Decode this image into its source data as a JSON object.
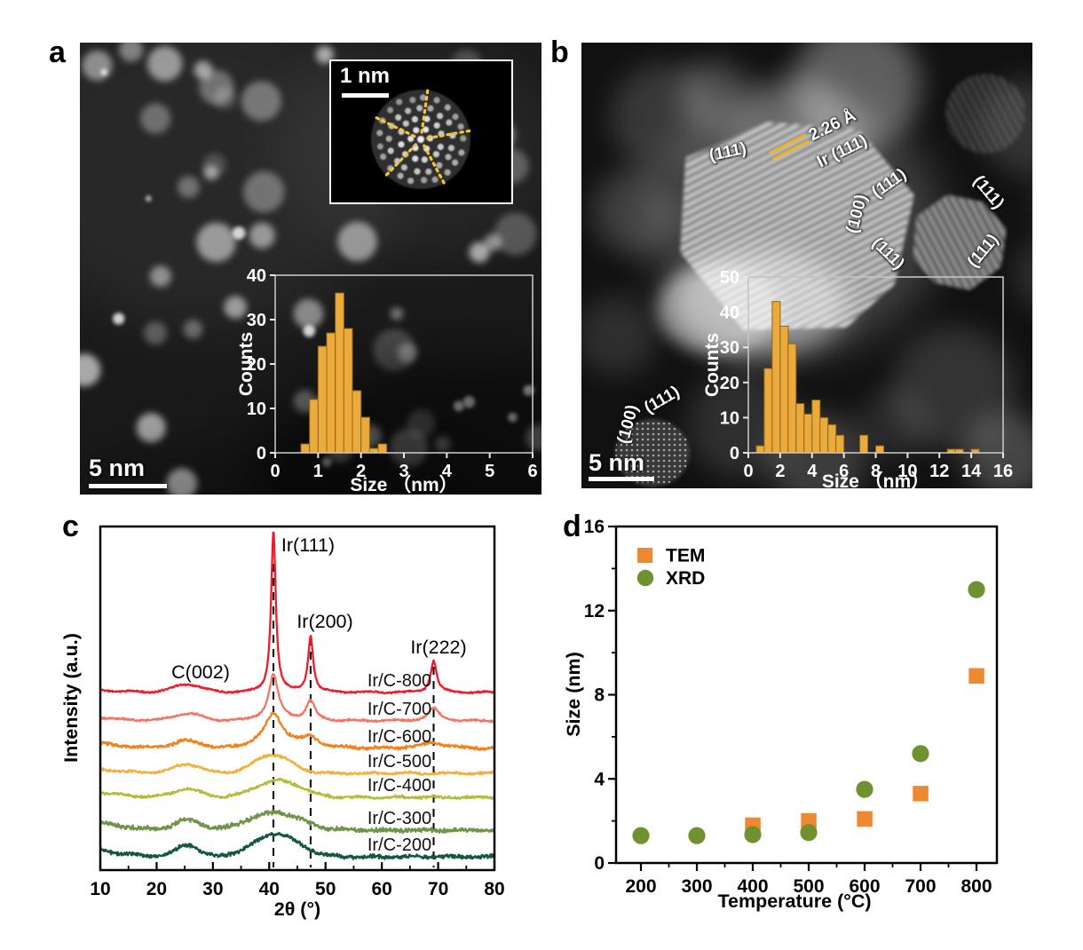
{
  "panels": {
    "a": {
      "label": "a",
      "scale_bar": "5 nm",
      "inset": {
        "scale_bar": "1 nm"
      }
    },
    "b": {
      "label": "b",
      "scale_bar": "5 nm",
      "annotations": {
        "big_111": "(111)",
        "d_spacing": "2.26 Å",
        "ir_111": "Ir (111)",
        "small_100": "(100)",
        "small_111_top": "(111)",
        "small_111_topright": "(111)",
        "small_111_bottomleft": "(111)",
        "small_111_bottomright": "(111)",
        "left_100": "(100)",
        "left_111": "(111)"
      }
    },
    "c": {
      "label": "c"
    },
    "d": {
      "label": "d"
    }
  },
  "colors": {
    "histogram_bar": "#edaa3c",
    "tem_marker": "#ef8833",
    "xrd_marker": "#6e9230",
    "annotation_line": "#f2b422"
  },
  "chart_data": [
    {
      "id": "hist_a",
      "type": "bar",
      "title": "",
      "xlabel": "Size （nm）",
      "ylabel": "Counts",
      "xlim": [
        0,
        6
      ],
      "ylim": [
        0,
        40
      ],
      "xticks": [
        0,
        1,
        2,
        3,
        4,
        5,
        6
      ],
      "yticks": [
        0,
        10,
        20,
        30,
        40
      ],
      "bin_width": 0.2,
      "bar_color": "#edaa3c",
      "bins": [
        [
          0.6,
          2
        ],
        [
          0.8,
          12
        ],
        [
          1.0,
          24
        ],
        [
          1.2,
          27
        ],
        [
          1.4,
          36
        ],
        [
          1.6,
          28
        ],
        [
          1.8,
          14
        ],
        [
          2.0,
          8
        ],
        [
          2.2,
          1
        ],
        [
          2.4,
          2
        ]
      ]
    },
    {
      "id": "hist_b",
      "type": "bar",
      "title": "",
      "xlabel": "Size （nm）",
      "ylabel": "Counts",
      "xlim": [
        0,
        16
      ],
      "ylim": [
        0,
        50
      ],
      "xticks": [
        0,
        2,
        4,
        6,
        8,
        10,
        12,
        14,
        16
      ],
      "yticks": [
        0,
        10,
        20,
        30,
        40,
        50
      ],
      "bin_width": 0.5,
      "bar_color": "#edaa3c",
      "bins": [
        [
          0.5,
          2
        ],
        [
          1.0,
          24
        ],
        [
          1.5,
          43
        ],
        [
          2.0,
          36
        ],
        [
          2.5,
          31
        ],
        [
          3.0,
          14
        ],
        [
          3.5,
          11
        ],
        [
          4.0,
          15
        ],
        [
          4.5,
          10
        ],
        [
          5.0,
          8
        ],
        [
          5.5,
          5
        ],
        [
          7.0,
          5
        ],
        [
          8.0,
          2
        ],
        [
          12.5,
          1
        ],
        [
          13.0,
          1
        ],
        [
          14.0,
          1
        ]
      ]
    },
    {
      "id": "xrd",
      "type": "line",
      "title": "",
      "xlabel": "2θ (°)",
      "ylabel": "Intensity (a.u.)",
      "xlim": [
        10,
        80
      ],
      "xticks": [
        10,
        20,
        30,
        40,
        50,
        60,
        70,
        80
      ],
      "grid": false,
      "peaks_2theta": [
        40.75,
        47.35,
        69.2
      ],
      "peak_labels": [
        {
          "text": "C(002)",
          "x": 25.5
        },
        {
          "text": "Ir(111)",
          "x": 40.75
        },
        {
          "text": "Ir(200)",
          "x": 47.35
        },
        {
          "text": "Ir(222)",
          "x": 69.2
        }
      ],
      "series": [
        {
          "name": "Ir/C-800",
          "color": "#ee1b2c",
          "c002": 9,
          "c002_w": 3.6,
          "broad": 0,
          "broad_c": 41,
          "broad_w": 5,
          "ir111": 182,
          "g111": 0.5,
          "ir200": 63,
          "g200": 0.55,
          "ir222": 36,
          "g222": 0.65,
          "left_rise": 3,
          "noise": 1.1
        },
        {
          "name": "Ir/C-700",
          "color": "#f37566",
          "c002": 8,
          "c002_w": 3.5,
          "broad": 4,
          "broad_c": 41,
          "broad_w": 4,
          "ir111": 48,
          "g111": 0.95,
          "ir200": 22,
          "g200": 0.95,
          "ir222": 14,
          "g222": 1.2,
          "left_rise": 4,
          "noise": 1.3
        },
        {
          "name": "Ir/C-600",
          "color": "#f08320",
          "c002": 8,
          "c002_w": 3.5,
          "broad": 9,
          "broad_c": 41,
          "broad_w": 4.5,
          "ir111": 30,
          "g111": 1.7,
          "ir200": 11,
          "g200": 1.7,
          "ir222": 7,
          "g222": 2.2,
          "left_rise": 6,
          "noise": 2.1
        },
        {
          "name": "Ir/C-500",
          "color": "#f2b03c",
          "c002": 10,
          "c002_w": 3.4,
          "broad": 21,
          "broad_c": 40.6,
          "broad_w": 4.6,
          "ir111": 0,
          "g111": 1,
          "ir200": 0,
          "g200": 1,
          "ir222": 0,
          "g222": 1,
          "left_rise": 5,
          "noise": 1.6
        },
        {
          "name": "Ir/C-400",
          "color": "#b4bc3b",
          "c002": 9,
          "c002_w": 3.4,
          "broad": 19,
          "broad_c": 41.6,
          "broad_w": 5.6,
          "ir111": 0,
          "g111": 1,
          "ir200": 0,
          "g200": 1,
          "ir222": 0,
          "g222": 1,
          "left_rise": 6,
          "noise": 1.9
        },
        {
          "name": "Ir/C-300",
          "color": "#6e9547",
          "c002": 11,
          "c002_w": 3.2,
          "broad": 20,
          "broad_c": 41,
          "broad_w": 6.5,
          "ir111": 0,
          "g111": 1,
          "ir200": 0,
          "g200": 1,
          "ir222": 0,
          "g222": 1,
          "left_rise": 9,
          "noise": 3.0
        },
        {
          "name": "Ir/C-200",
          "color": "#14573b",
          "c002": 13,
          "c002_w": 2.8,
          "broad": 26,
          "broad_c": 41.2,
          "broad_w": 5.6,
          "ir111": 0,
          "g111": 1,
          "ir200": 0,
          "g200": 1,
          "ir222": 0,
          "g222": 1,
          "left_rise": 8,
          "noise": 2.6
        }
      ]
    },
    {
      "id": "size_vs_temp",
      "type": "scatter",
      "title": "",
      "xlabel": "Temperature (°C)",
      "ylabel": "Size (nm)",
      "xticks": [
        200,
        300,
        400,
        500,
        600,
        700,
        800
      ],
      "ylim": [
        0,
        16
      ],
      "yticks": [
        0,
        4,
        8,
        12,
        16
      ],
      "legend_position": "top-left",
      "series": [
        {
          "name": "TEM",
          "marker": "square",
          "color": "#ef8833",
          "points": [
            [
              400,
              1.8
            ],
            [
              500,
              2.0
            ],
            [
              600,
              2.1
            ],
            [
              700,
              3.3
            ],
            [
              800,
              8.9
            ]
          ]
        },
        {
          "name": "XRD",
          "marker": "circle",
          "color": "#6e9230",
          "points": [
            [
              200,
              1.3
            ],
            [
              300,
              1.3
            ],
            [
              400,
              1.35
            ],
            [
              500,
              1.45
            ],
            [
              600,
              3.5
            ],
            [
              700,
              5.2
            ],
            [
              800,
              13.0
            ]
          ]
        }
      ]
    }
  ]
}
